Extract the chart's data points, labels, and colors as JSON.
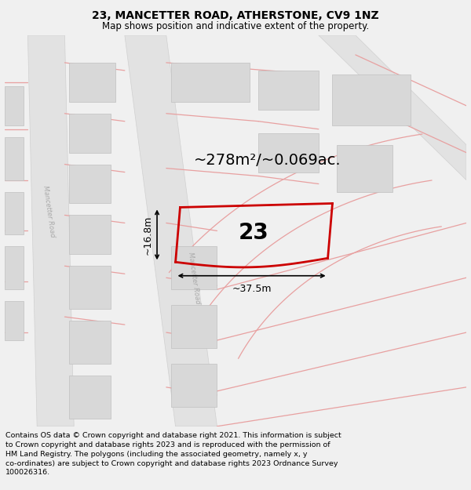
{
  "title": "23, MANCETTER ROAD, ATHERSTONE, CV9 1NZ",
  "subtitle": "Map shows position and indicative extent of the property.",
  "area_text": "~278m²/~0.069ac.",
  "label_number": "23",
  "width_label": "~37.5m",
  "height_label": "~16.8m",
  "footer": "Contains OS data © Crown copyright and database right 2021. This information is subject to Crown copyright and database rights 2023 and is reproduced with the permission of HM Land Registry. The polygons (including the associated geometry, namely x, y co-ordinates) are subject to Crown copyright and database rights 2023 Ordnance Survey 100026316.",
  "bg_color": "#f0f0f0",
  "map_bg": "#ffffff",
  "road_color": "#e2e2e2",
  "road_stroke": "#d0d0d0",
  "building_fill": "#d8d8d8",
  "building_stroke": "#c0c0c0",
  "pink_line": "#e8a0a0",
  "red_polygon": "#cc0000",
  "title_fontsize": 10,
  "subtitle_fontsize": 8.5,
  "area_fontsize": 14,
  "number_fontsize": 20,
  "dim_fontsize": 9,
  "footer_fontsize": 6.8
}
